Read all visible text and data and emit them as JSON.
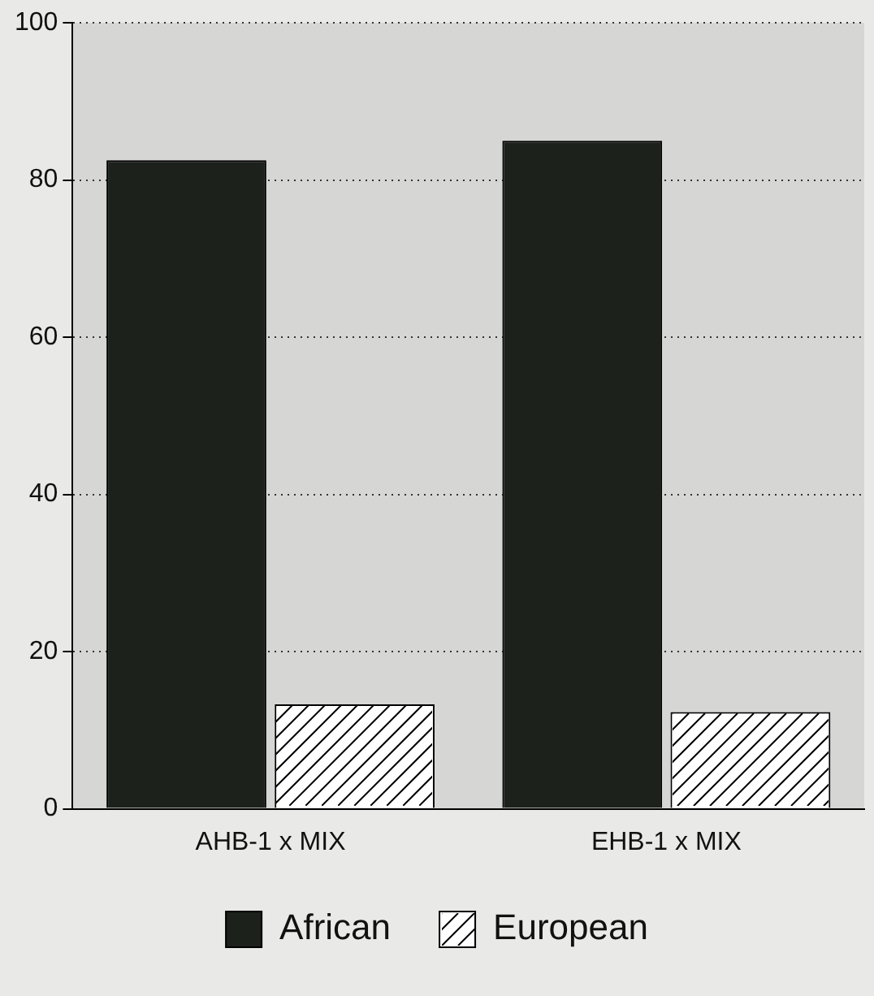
{
  "chart_data": {
    "type": "bar",
    "categories": [
      "AHB-1 x MIX",
      "EHB-1 x MIX"
    ],
    "series": [
      {
        "name": "African",
        "color": "#1c211c",
        "values": [
          82.5,
          85
        ]
      },
      {
        "name": "European",
        "color": "#ffffff",
        "values": [
          13.3,
          12.3
        ]
      }
    ],
    "ylim": [
      0,
      100
    ],
    "yticks": [
      0,
      20,
      40,
      60,
      80,
      100
    ],
    "grid": "y",
    "legend": "bottom"
  }
}
